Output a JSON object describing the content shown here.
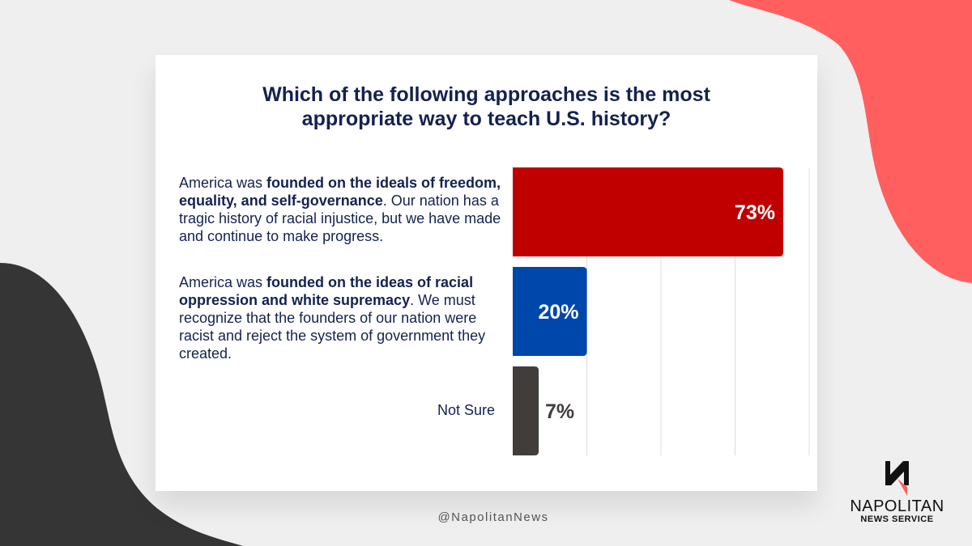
{
  "title": {
    "line1": "Which of the following approaches is the most",
    "line2": "appropriate way to teach U.S. history?"
  },
  "labels": [
    {
      "pre": "America was ",
      "bold": "founded on the ideals of freedom, equality, and self-governance",
      "post": ". Our nation has a tragic history of racial injustice, but we have made and continue to make progress."
    },
    {
      "pre": "America was ",
      "bold": "founded on the ideas of racial oppression and white supremacy",
      "post": ". We must recognize that the founders of our nation were racist and reject the system of government they created."
    },
    {
      "text": "Not Sure"
    }
  ],
  "chart_data": {
    "type": "bar",
    "orientation": "horizontal",
    "categories": [
      "America was founded on the ideals of freedom, equality, and self-governance. Our nation has a tragic history of racial injustice, but we have made and continue to make progress.",
      "America was founded on the ideas of racial oppression and white supremacy. We must recognize that the founders of our nation were racist and reject the system of government they created.",
      "Not Sure"
    ],
    "values": [
      73,
      20,
      7
    ],
    "data_labels": [
      "73%",
      "20%",
      "7%"
    ],
    "colors": [
      "#c00000",
      "#0047ab",
      "#403d3b"
    ],
    "label_colors": [
      "#ffffff",
      "#ffffff",
      "#403d3b"
    ],
    "xlim": [
      0,
      80
    ],
    "grid": true,
    "title": "Which of the following approaches is the most appropriate way to teach U.S. history?",
    "xlabel": "",
    "ylabel": ""
  },
  "footer": {
    "handle": "@NapolitanNews"
  },
  "logo": {
    "name": "NAPOLITAN",
    "sub": "NEWS SERVICE"
  },
  "colors": {
    "accent_red": "#ff5f5f",
    "dark_shape": "#353535",
    "title_navy": "#14224f"
  }
}
